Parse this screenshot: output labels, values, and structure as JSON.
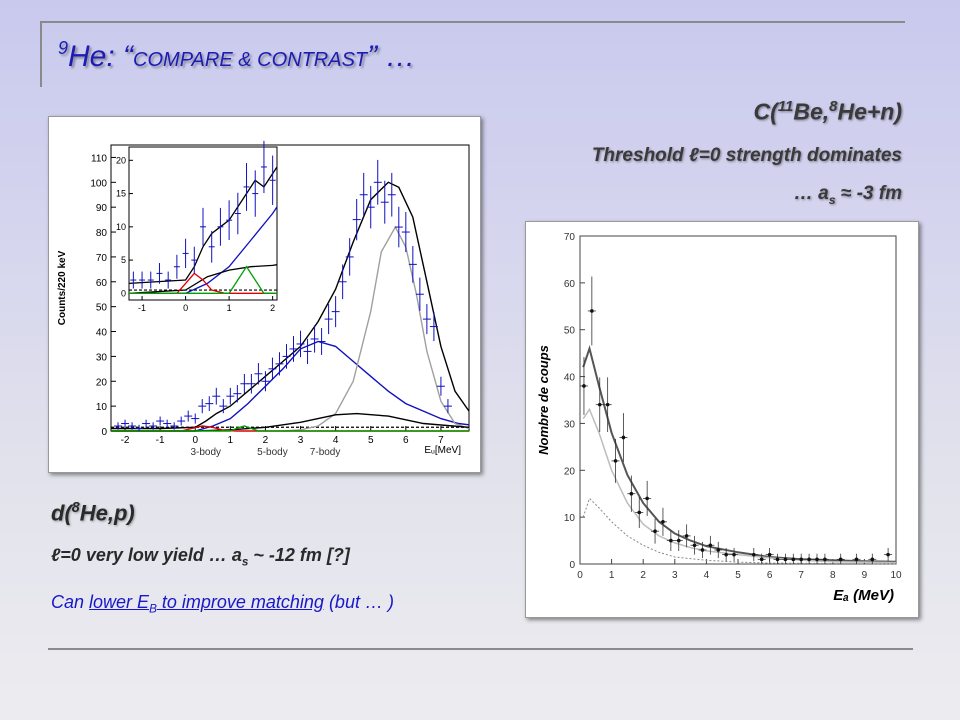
{
  "title": {
    "sup": "9",
    "main": "He: “",
    "smallcaps": "COMPARE & CONTRAST",
    "tail": "” …"
  },
  "right_block": {
    "reaction_pre": "C(",
    "reaction_sup1": "11",
    "reaction_mid": "Be,",
    "reaction_sup2": "8",
    "reaction_post": "He+n)",
    "line2": "Threshold ℓ=0 strength dominates",
    "line3_pre": "… a",
    "line3_sub": "s",
    "line3_post": " ≈ -3 fm"
  },
  "left_block": {
    "reaction_pre": "d(",
    "reaction_sup": "8",
    "reaction_post": "He,p)",
    "line2_pre": "ℓ=0 very low yield … a",
    "line2_sub": "s",
    "line2_post": " ~ -12 fm [?]",
    "line3_pre": "Can ",
    "line3_u1": "lower E",
    "line3_u1_sub": "B",
    "line3_u2": " to improve matching",
    "line3_post": " (but … )"
  },
  "colors": {
    "title": "#1c1cb4",
    "fit_total": "#000000",
    "fit_blue": "#1010c0",
    "fit_grey": "#a0a0a0",
    "fit_red": "#e00000",
    "fit_green": "#00a000",
    "data_points": "#1010c0"
  },
  "chart_data": [
    {
      "type": "scatter",
      "xlabel": "Eᵤ[MeV]",
      "ylabel": "Counts/220 keV",
      "xlim": [
        -2.4,
        7.8
      ],
      "ylim": [
        0,
        115
      ],
      "xticks": [
        "-2",
        "-1",
        "0",
        "1",
        "2",
        "3",
        "4",
        "5",
        "6",
        "7"
      ],
      "yticks": [
        "0",
        "10",
        "20",
        "30",
        "40",
        "50",
        "60",
        "70",
        "80",
        "90",
        "100",
        "110"
      ],
      "annotations": [
        "3-body",
        "5-body",
        "7-body"
      ],
      "points": {
        "x": [
          -2.2,
          -2.0,
          -1.8,
          -1.6,
          -1.4,
          -1.2,
          -1.0,
          -0.8,
          -0.6,
          -0.4,
          -0.2,
          0.0,
          0.2,
          0.4,
          0.6,
          0.8,
          1.0,
          1.2,
          1.4,
          1.6,
          1.8,
          2.0,
          2.2,
          2.4,
          2.6,
          2.8,
          3.0,
          3.2,
          3.4,
          3.6,
          3.8,
          4.0,
          4.2,
          4.4,
          4.6,
          4.8,
          5.0,
          5.2,
          5.4,
          5.6,
          5.8,
          6.0,
          6.2,
          6.4,
          6.6,
          6.8,
          7.0,
          7.2
        ],
        "y": [
          2,
          3,
          2,
          1,
          3,
          2,
          4,
          3,
          2,
          4,
          6,
          5,
          10,
          11,
          14,
          10,
          14,
          15,
          19,
          19,
          23,
          20,
          25,
          27,
          30,
          33,
          35,
          32,
          37,
          36,
          45,
          48,
          60,
          70,
          85,
          95,
          90,
          100,
          92,
          95,
          82,
          80,
          67,
          55,
          45,
          42,
          18,
          10
        ]
      },
      "series": [
        {
          "name": "total fit",
          "x": [
            -2.4,
            -1,
            0,
            0.3,
            0.6,
            1,
            1.5,
            2,
            2.5,
            3,
            3.5,
            4,
            4.5,
            5,
            5.5,
            5.8,
            6.2,
            6.6,
            7,
            7.4,
            7.8
          ],
          "y": [
            1,
            1,
            1.5,
            4,
            7,
            10,
            16,
            22,
            28,
            34,
            44,
            57,
            76,
            93,
            100,
            98,
            86,
            60,
            34,
            16,
            8
          ]
        },
        {
          "name": "blue",
          "x": [
            -2.4,
            0,
            0.5,
            1,
            1.5,
            2,
            2.5,
            3,
            3.5,
            4,
            4.5,
            5,
            5.5,
            6,
            6.5,
            7,
            7.5,
            7.8
          ],
          "y": [
            0,
            0,
            2,
            5,
            11,
            18,
            25,
            33,
            36,
            34,
            28,
            22,
            16,
            11,
            8,
            5,
            3,
            2.5
          ]
        },
        {
          "name": "grey",
          "x": [
            2.5,
            3,
            3.5,
            4,
            4.5,
            5,
            5.3,
            5.7,
            6,
            6.3,
            6.6,
            7,
            7.4,
            7.8
          ],
          "y": [
            0,
            0.5,
            2,
            7,
            20,
            48,
            72,
            82,
            74,
            55,
            32,
            12,
            3,
            1
          ]
        },
        {
          "name": "black broad",
          "x": [
            -2.4,
            0,
            1,
            2,
            3,
            4,
            4.6,
            5.5,
            6.5,
            7.8
          ],
          "y": [
            0,
            0,
            0.5,
            1.5,
            3.5,
            6.5,
            7,
            6,
            3,
            1.5
          ]
        },
        {
          "name": "red",
          "x": [
            -2.4,
            -0.4,
            -0.1,
            0.2,
            0.5,
            0.8,
            1.2,
            7.8
          ],
          "y": [
            0,
            0,
            1,
            2,
            1.5,
            0.3,
            0,
            0
          ]
        },
        {
          "name": "green",
          "x": [
            -2.4,
            1.0,
            1.2,
            1.4,
            1.6,
            1.8,
            7.8
          ],
          "y": [
            0,
            0,
            1.2,
            2,
            1,
            0,
            0
          ]
        }
      ],
      "inset": {
        "xlim": [
          -1.3,
          2.1
        ],
        "ylim": [
          -1,
          22
        ],
        "xticks": [
          "-1",
          "0",
          "1",
          "2"
        ],
        "yticks": [
          "0",
          "5",
          "10",
          "15",
          "20"
        ],
        "points": {
          "x": [
            -1.2,
            -1.0,
            -0.8,
            -0.6,
            -0.4,
            -0.2,
            0.0,
            0.2,
            0.4,
            0.6,
            0.8,
            1.0,
            1.2,
            1.4,
            1.6,
            1.8,
            2.0
          ],
          "y": [
            2,
            2,
            2,
            3,
            2,
            4,
            6,
            5,
            10,
            7,
            10,
            11,
            12,
            16,
            15,
            19,
            17
          ]
        },
        "series": [
          {
            "name": "total fit",
            "x": [
              -1.3,
              0,
              0.2,
              0.4,
              0.6,
              0.8,
              1.0,
              1.2,
              1.4,
              1.6,
              1.8,
              2.0,
              2.1
            ],
            "y": [
              1.5,
              2,
              4,
              7,
              9,
              10,
              11,
              13,
              15,
              17,
              16,
              18,
              19
            ]
          },
          {
            "name": "blue",
            "x": [
              -1.3,
              0,
              0.5,
              1.0,
              1.5,
              2.0,
              2.1
            ],
            "y": [
              0,
              0,
              1.5,
              4,
              8,
              12,
              13
            ]
          },
          {
            "name": "black",
            "x": [
              -1.3,
              0,
              0.5,
              1.0,
              1.5,
              2.0,
              2.1
            ],
            "y": [
              0,
              0.5,
              2.5,
              3.5,
              4,
              4.2,
              4.3
            ]
          },
          {
            "name": "red",
            "x": [
              -1.3,
              -0.2,
              0,
              0.2,
              0.4,
              0.6,
              0.9,
              2.1
            ],
            "y": [
              0,
              0,
              1.5,
              3,
              2,
              0.5,
              0,
              0
            ]
          },
          {
            "name": "green",
            "x": [
              -1.3,
              1.0,
              1.2,
              1.4,
              1.6,
              1.8,
              2.1
            ],
            "y": [
              0,
              0,
              2,
              4,
              2,
              0,
              0
            ]
          }
        ]
      }
    },
    {
      "type": "scatter",
      "xlabel": "Eₐ (MeV)",
      "ylabel": "Nombre de coups",
      "xlim": [
        0,
        10
      ],
      "ylim": [
        0,
        70
      ],
      "xticks": [
        "0",
        "1",
        "2",
        "3",
        "4",
        "5",
        "6",
        "7",
        "8",
        "9",
        "10"
      ],
      "yticks": [
        "0",
        "10",
        "20",
        "30",
        "40",
        "50",
        "60",
        "70"
      ],
      "points": {
        "x": [
          0.125,
          0.375,
          0.625,
          0.875,
          1.125,
          1.375,
          1.625,
          1.875,
          2.125,
          2.375,
          2.625,
          2.875,
          3.125,
          3.375,
          3.625,
          3.875,
          4.125,
          4.375,
          4.625,
          4.875,
          5.5,
          5.75,
          6.0,
          6.25,
          6.5,
          6.75,
          7.0,
          7.25,
          7.5,
          7.75,
          8.25,
          8.75,
          9.25,
          9.75
        ],
        "y": [
          38,
          54,
          34,
          34,
          22,
          27,
          15,
          11,
          14,
          7,
          9,
          5,
          5,
          6,
          4,
          3,
          4,
          3,
          2,
          2,
          2,
          1,
          2,
          1,
          1,
          1,
          1,
          1,
          1,
          1,
          1,
          1,
          1,
          2
        ]
      },
      "series": [
        {
          "name": "total fit",
          "x": [
            0.1,
            0.3,
            0.6,
            1,
            1.5,
            2,
            2.5,
            3,
            3.5,
            4,
            5,
            6,
            7,
            8,
            9,
            10
          ],
          "y": [
            42,
            46,
            38,
            28,
            19,
            13,
            9,
            6.5,
            5,
            3.8,
            2.5,
            1.5,
            1,
            0.8,
            0.6,
            0.5
          ]
        },
        {
          "name": "grey",
          "x": [
            0.1,
            0.3,
            0.6,
            1,
            1.5,
            2,
            2.5,
            3,
            3.5,
            4,
            5,
            6,
            7,
            8,
            9,
            10
          ],
          "y": [
            31,
            33,
            28,
            20,
            13,
            8.5,
            6,
            4.5,
            3.5,
            2.8,
            2,
            1.3,
            0.8,
            0.5,
            0.4,
            0.3
          ]
        },
        {
          "name": "dotted",
          "x": [
            0.1,
            0.3,
            0.6,
            1,
            1.5,
            2,
            2.5,
            3,
            4,
            5,
            6,
            8,
            10
          ],
          "y": [
            10,
            14,
            12,
            9,
            6,
            4,
            2.5,
            1.5,
            0.8,
            0.4,
            0.2,
            0.1,
            0
          ]
        }
      ]
    }
  ]
}
